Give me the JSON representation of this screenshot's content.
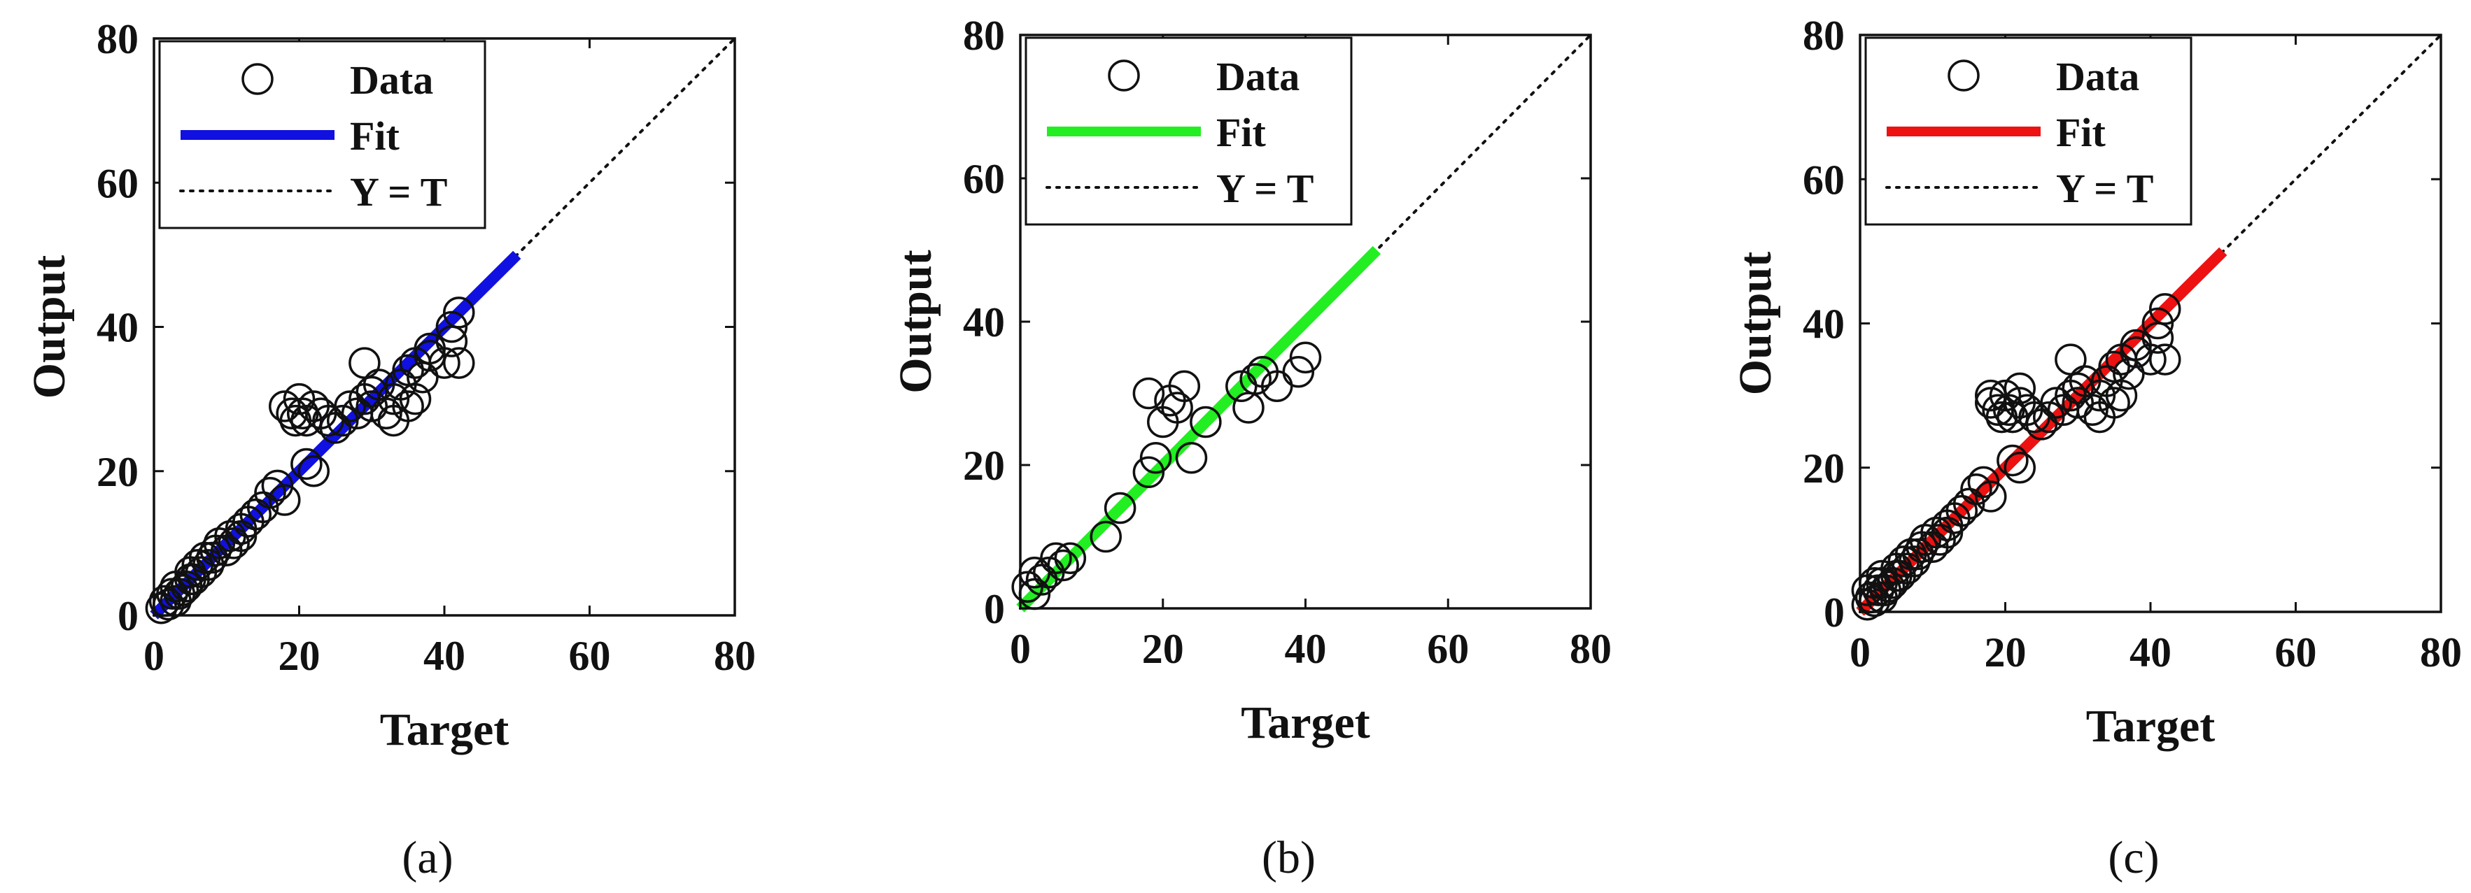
{
  "chart_data": [
    {
      "type": "scatter",
      "caption": "(a)",
      "xlabel": "Target",
      "ylabel": "Output",
      "xlim": [
        0,
        80
      ],
      "ylim": [
        0,
        80
      ],
      "xticks": [
        "0",
        "20",
        "40",
        "60",
        "80"
      ],
      "yticks": [
        "0",
        "20",
        "40",
        "60",
        "80"
      ],
      "fit_color": "#1010e0",
      "legend": {
        "position": "top-left",
        "entries": [
          "Data",
          "Fit",
          "Y = T"
        ]
      },
      "fit": {
        "x": [
          0,
          50
        ],
        "y": [
          0,
          50
        ]
      },
      "identity": {
        "x": [
          0,
          80
        ],
        "y": [
          0,
          80
        ]
      },
      "series": [
        {
          "name": "Data",
          "x": [
            1,
            1.5,
            2,
            2.5,
            3,
            3,
            3.5,
            4,
            4.5,
            5,
            5,
            5.5,
            6,
            6.5,
            7,
            7.5,
            8,
            8.5,
            9,
            10,
            10.5,
            11,
            12,
            12,
            13,
            14,
            15,
            16,
            17,
            18,
            18,
            19,
            19.5,
            20,
            20.5,
            21,
            21,
            22,
            22,
            23,
            24,
            25,
            26,
            27,
            28,
            29,
            29,
            30,
            30,
            31,
            32,
            33,
            33,
            34,
            35,
            35,
            36,
            36,
            37,
            38,
            38,
            40,
            41,
            41,
            42,
            42
          ],
          "y": [
            1,
            2,
            1.5,
            3,
            2,
            4,
            3,
            3.5,
            4,
            5,
            6,
            5,
            7,
            6,
            8,
            7,
            8,
            9,
            10,
            9,
            11,
            10,
            12,
            11,
            13,
            14,
            15,
            17,
            18,
            16,
            29,
            28,
            27,
            30,
            28,
            21,
            27,
            20,
            29,
            28,
            27,
            26,
            27,
            29,
            28,
            30,
            35,
            31,
            29,
            32,
            28,
            30,
            27,
            32,
            29,
            34,
            30,
            35,
            33,
            36,
            37,
            35,
            40,
            38,
            42,
            35
          ]
        }
      ]
    },
    {
      "type": "scatter",
      "caption": "(b)",
      "xlabel": "Target",
      "ylabel": "Output",
      "xlim": [
        0,
        80
      ],
      "ylim": [
        0,
        80
      ],
      "xticks": [
        "0",
        "20",
        "40",
        "60",
        "80"
      ],
      "yticks": [
        "0",
        "20",
        "40",
        "60",
        "80"
      ],
      "fit_color": "#22ee22",
      "legend": {
        "position": "top-left",
        "entries": [
          "Data",
          "Fit",
          "Y = T"
        ]
      },
      "fit": {
        "x": [
          0,
          50
        ],
        "y": [
          0,
          50
        ]
      },
      "identity": {
        "x": [
          0,
          80
        ],
        "y": [
          0,
          80
        ]
      },
      "series": [
        {
          "name": "Data",
          "x": [
            1,
            2,
            2,
            3,
            4,
            5,
            6,
            7,
            12,
            14,
            18,
            18,
            19,
            20,
            21,
            22,
            23,
            24,
            26,
            31,
            32,
            33,
            34,
            36,
            39,
            40
          ],
          "y": [
            3,
            5,
            2,
            4,
            5,
            7,
            6,
            7,
            10,
            14,
            19,
            30,
            21,
            26,
            29,
            28,
            31,
            21,
            26,
            31,
            28,
            32,
            33,
            31,
            33,
            35
          ]
        }
      ]
    },
    {
      "type": "scatter",
      "caption": "(c)",
      "xlabel": "Target",
      "ylabel": "Output",
      "xlim": [
        0,
        80
      ],
      "ylim": [
        0,
        80
      ],
      "xticks": [
        "0",
        "20",
        "40",
        "60",
        "80"
      ],
      "yticks": [
        "0",
        "20",
        "40",
        "60",
        "80"
      ],
      "fit_color": "#ee1111",
      "legend": {
        "position": "top-left",
        "entries": [
          "Data",
          "Fit",
          "Y = T"
        ]
      },
      "fit": {
        "x": [
          0,
          50
        ],
        "y": [
          0,
          50
        ]
      },
      "identity": {
        "x": [
          0,
          80
        ],
        "y": [
          0,
          80
        ]
      },
      "series": [
        {
          "name": "Data",
          "x": [
            1,
            1.5,
            2,
            2.5,
            3,
            3,
            3.5,
            4,
            4.5,
            5,
            5,
            5.5,
            6,
            6.5,
            7,
            7.5,
            8,
            8.5,
            9,
            10,
            10.5,
            11,
            12,
            12,
            13,
            14,
            15,
            16,
            17,
            18,
            18,
            19,
            19.5,
            20,
            20.5,
            21,
            21,
            22,
            22,
            23,
            24,
            25,
            26,
            27,
            28,
            29,
            29,
            30,
            30,
            31,
            32,
            33,
            33,
            34,
            35,
            35,
            36,
            36,
            37,
            38,
            38,
            40,
            41,
            41,
            42,
            42,
            1,
            3,
            2,
            18,
            22
          ],
          "y": [
            1,
            2,
            1.5,
            3,
            2,
            4,
            3,
            3.5,
            4,
            5,
            6,
            5,
            7,
            6,
            8,
            7,
            8,
            9,
            10,
            9,
            11,
            10,
            12,
            11,
            13,
            14,
            15,
            17,
            18,
            16,
            29,
            28,
            27,
            30,
            28,
            21,
            27,
            20,
            29,
            28,
            27,
            26,
            27,
            29,
            28,
            30,
            35,
            31,
            29,
            32,
            28,
            30,
            27,
            32,
            29,
            34,
            30,
            35,
            33,
            36,
            37,
            35,
            40,
            38,
            42,
            35,
            3,
            5,
            4,
            30,
            31
          ]
        }
      ]
    }
  ]
}
